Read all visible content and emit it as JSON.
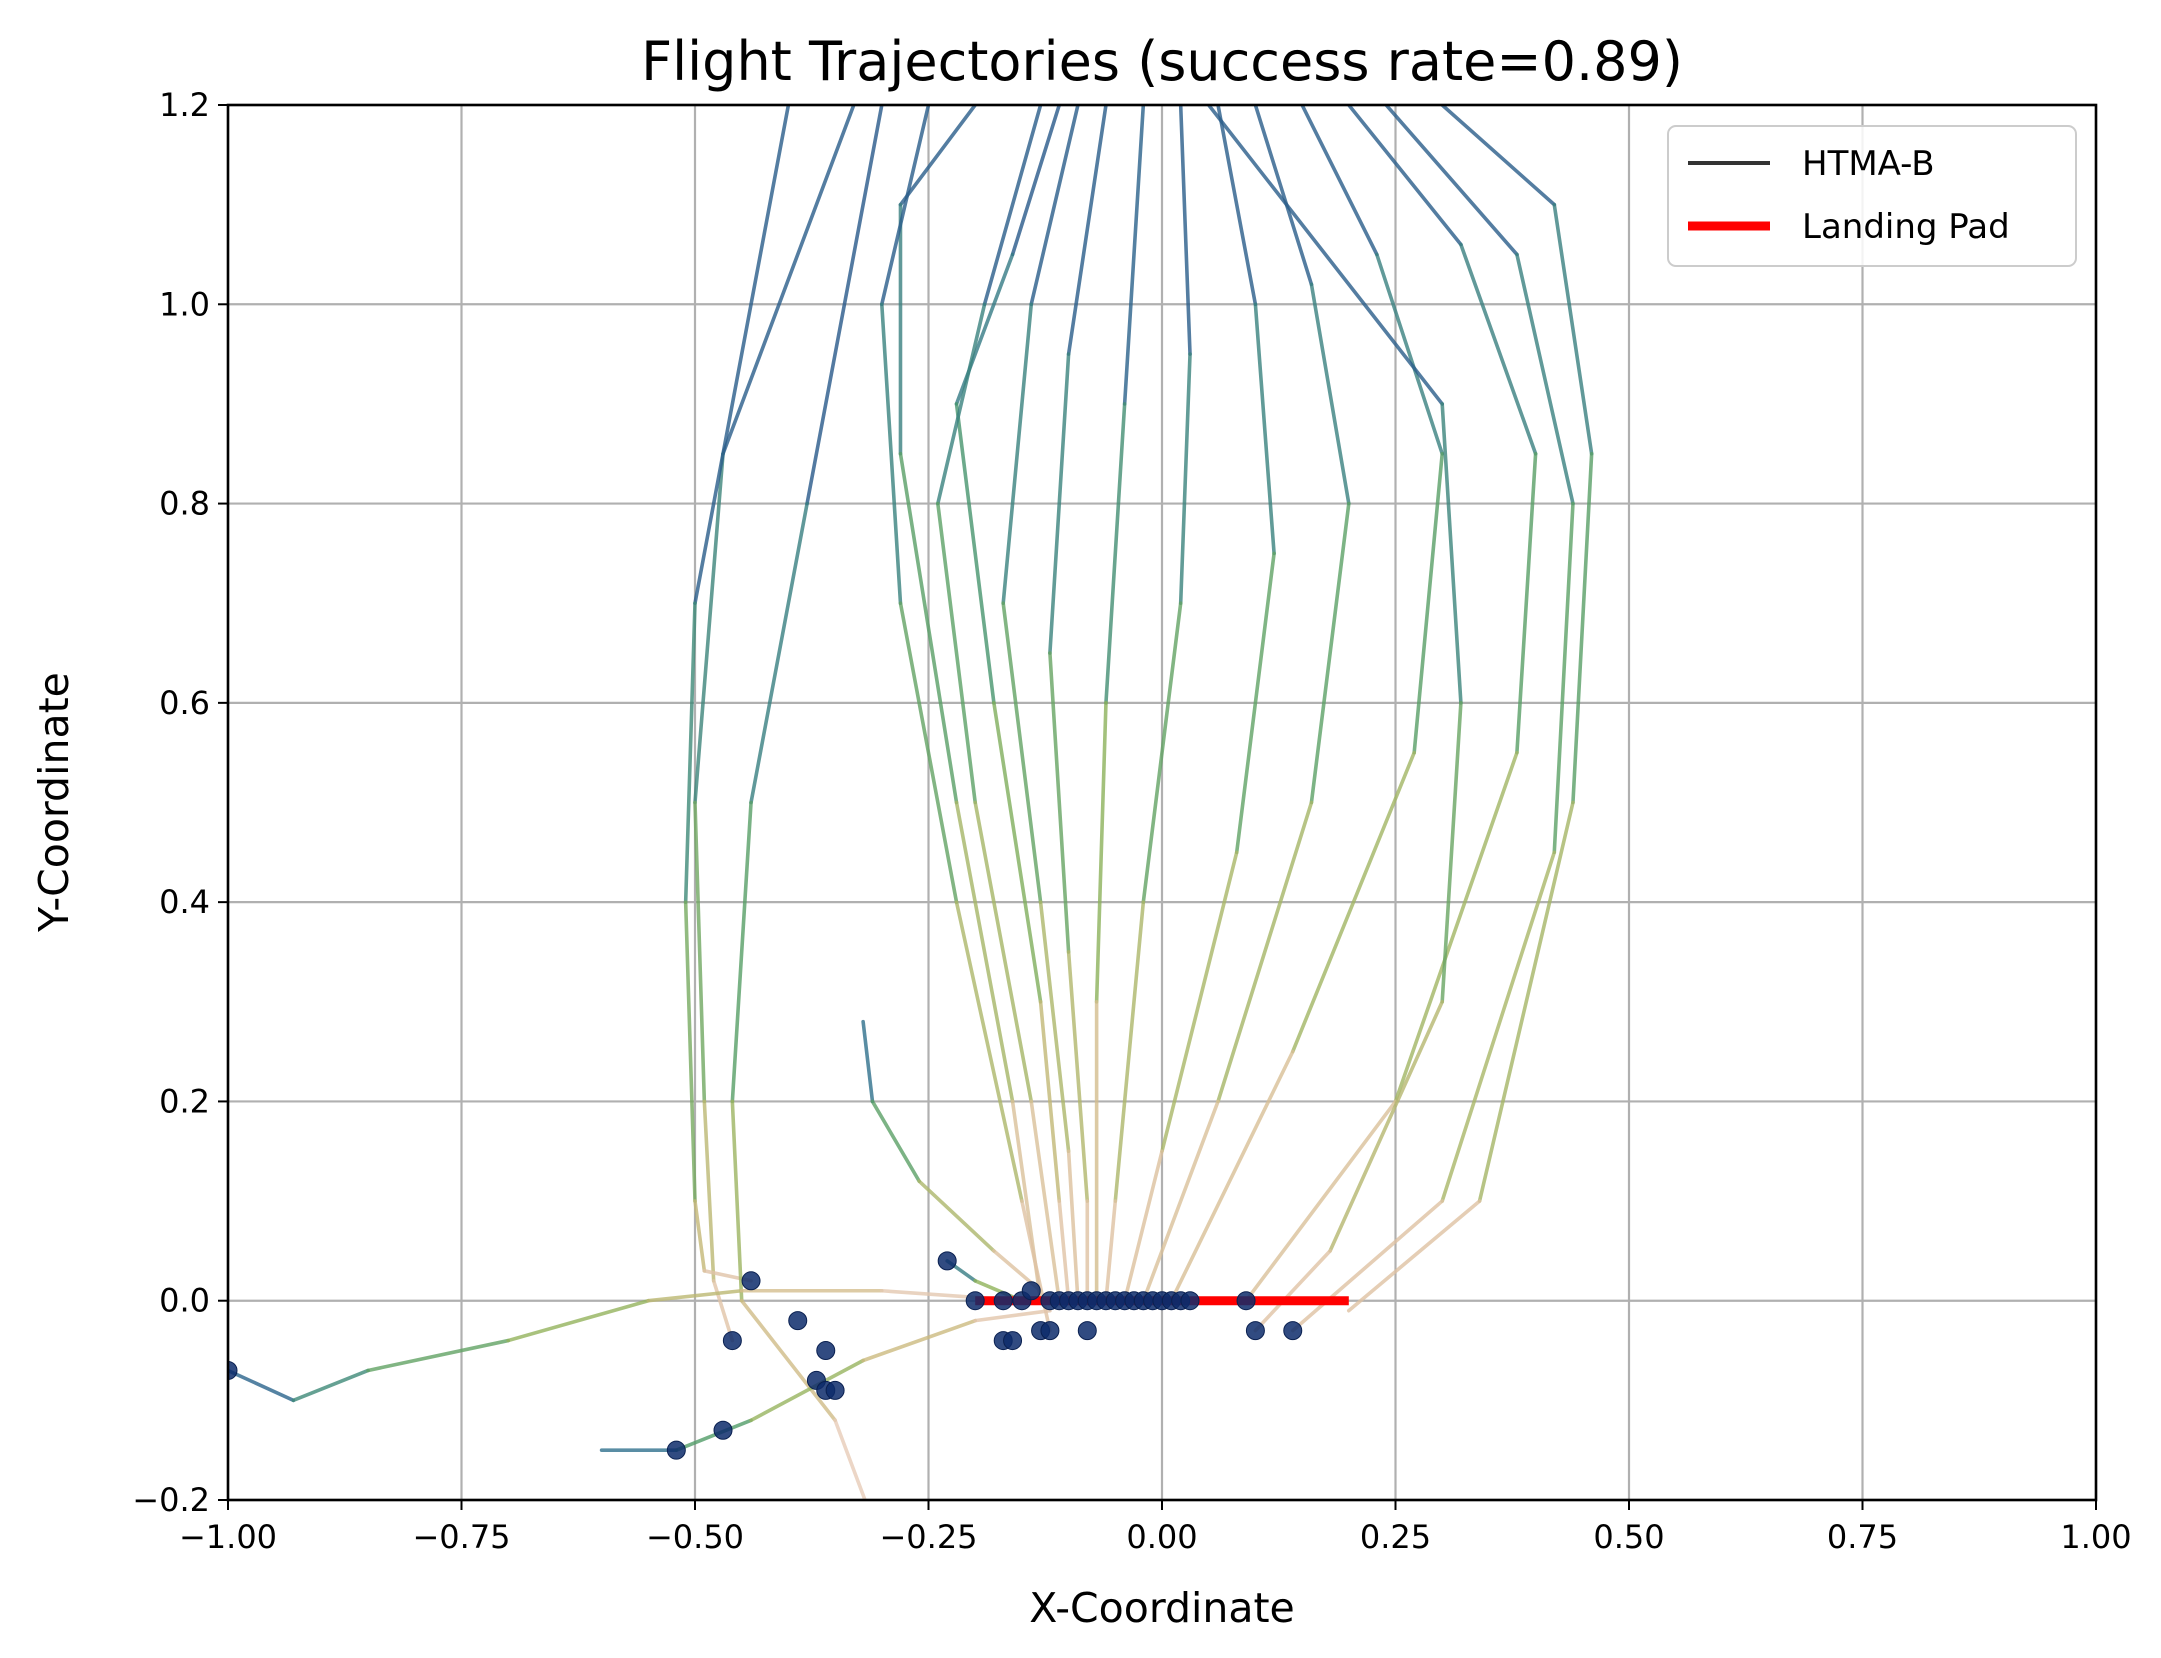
{
  "chart_data": {
    "type": "line",
    "title": "Flight Trajectories (success rate=0.89)",
    "xlabel": "X-Coordinate",
    "ylabel": "Y-Coordinate",
    "xlim": [
      -1.0,
      1.0
    ],
    "ylim": [
      -0.2,
      1.2
    ],
    "xticks": [
      -1.0,
      -0.75,
      -0.5,
      -0.25,
      0.0,
      0.25,
      0.5,
      0.75,
      1.0
    ],
    "xtick_labels": [
      "−1.00",
      "−0.75",
      "−0.50",
      "−0.25",
      "0.00",
      "0.25",
      "0.50",
      "0.75",
      "1.00"
    ],
    "yticks": [
      -0.2,
      0.0,
      0.2,
      0.4,
      0.6,
      0.8,
      1.0,
      1.2
    ],
    "ytick_labels": [
      "−0.2",
      "0.0",
      "0.2",
      "0.4",
      "0.6",
      "0.8",
      "1.0",
      "1.2"
    ],
    "grid": true,
    "legend": {
      "placement": "top-right",
      "entries": [
        {
          "label": "HTMA-B",
          "color": "#333333"
        },
        {
          "label": "Landing Pad",
          "color": "#ff0000"
        }
      ]
    },
    "landing_pad": {
      "x": [
        -0.2,
        0.2
      ],
      "y": 0.0,
      "color": "#ff0000"
    },
    "trajectory_colormap": [
      "#1a237e",
      "#2e6f8e",
      "#4a9a6a",
      "#8fb35a",
      "#c9b97a",
      "#e0c3a6",
      "#f3ddd6"
    ],
    "trajectories": [
      [
        [
          -0.11,
          1.2
        ],
        [
          -0.16,
          1.05
        ],
        [
          -0.22,
          0.9
        ],
        [
          -0.18,
          0.6
        ],
        [
          -0.13,
          0.3
        ],
        [
          -0.11,
          0.1
        ],
        [
          -0.1,
          0.0
        ]
      ],
      [
        [
          -0.13,
          1.2
        ],
        [
          -0.19,
          1.0
        ],
        [
          -0.24,
          0.8
        ],
        [
          -0.2,
          0.5
        ],
        [
          -0.14,
          0.2
        ],
        [
          -0.11,
          0.0
        ]
      ],
      [
        [
          -0.09,
          1.2
        ],
        [
          -0.14,
          1.0
        ],
        [
          -0.17,
          0.7
        ],
        [
          -0.13,
          0.4
        ],
        [
          -0.1,
          0.15
        ],
        [
          -0.09,
          0.0
        ]
      ],
      [
        [
          -0.06,
          1.2
        ],
        [
          -0.1,
          0.95
        ],
        [
          -0.12,
          0.65
        ],
        [
          -0.1,
          0.35
        ],
        [
          -0.08,
          0.1
        ],
        [
          -0.08,
          0.0
        ]
      ],
      [
        [
          -0.02,
          1.2
        ],
        [
          -0.04,
          0.9
        ],
        [
          -0.06,
          0.6
        ],
        [
          -0.07,
          0.3
        ],
        [
          -0.07,
          0.0
        ]
      ],
      [
        [
          0.02,
          1.2
        ],
        [
          0.03,
          0.95
        ],
        [
          0.02,
          0.7
        ],
        [
          -0.02,
          0.4
        ],
        [
          -0.05,
          0.1
        ],
        [
          -0.06,
          0.0
        ]
      ],
      [
        [
          0.06,
          1.2
        ],
        [
          0.1,
          1.0
        ],
        [
          0.12,
          0.75
        ],
        [
          0.08,
          0.45
        ],
        [
          0.0,
          0.15
        ],
        [
          -0.04,
          0.0
        ]
      ],
      [
        [
          0.1,
          1.2
        ],
        [
          0.16,
          1.02
        ],
        [
          0.2,
          0.8
        ],
        [
          0.16,
          0.5
        ],
        [
          0.06,
          0.2
        ],
        [
          -0.02,
          0.0
        ]
      ],
      [
        [
          0.15,
          1.2
        ],
        [
          0.23,
          1.05
        ],
        [
          0.3,
          0.85
        ],
        [
          0.27,
          0.55
        ],
        [
          0.14,
          0.25
        ],
        [
          0.01,
          0.0
        ]
      ],
      [
        [
          0.2,
          1.2
        ],
        [
          0.32,
          1.06
        ],
        [
          0.4,
          0.85
        ],
        [
          0.38,
          0.55
        ],
        [
          0.25,
          0.2
        ],
        [
          0.09,
          0.0
        ]
      ],
      [
        [
          0.24,
          1.2
        ],
        [
          0.38,
          1.05
        ],
        [
          0.44,
          0.8
        ],
        [
          0.42,
          0.45
        ],
        [
          0.3,
          0.1
        ],
        [
          0.14,
          -0.03
        ]
      ],
      [
        [
          0.3,
          1.2
        ],
        [
          0.42,
          1.1
        ],
        [
          0.46,
          0.85
        ],
        [
          0.44,
          0.5
        ],
        [
          0.34,
          0.1
        ],
        [
          0.2,
          -0.01
        ]
      ],
      [
        [
          -0.2,
          1.2
        ],
        [
          -0.28,
          1.1
        ],
        [
          -0.28,
          0.85
        ],
        [
          -0.22,
          0.5
        ],
        [
          -0.16,
          0.2
        ],
        [
          -0.13,
          0.0
        ]
      ],
      [
        [
          -0.25,
          1.2
        ],
        [
          -0.3,
          1.0
        ],
        [
          -0.28,
          0.7
        ],
        [
          -0.22,
          0.4
        ],
        [
          -0.15,
          0.1
        ],
        [
          -0.12,
          -0.03
        ]
      ],
      [
        [
          -0.33,
          1.2
        ],
        [
          -0.47,
          0.85
        ],
        [
          -0.5,
          0.5
        ],
        [
          -0.49,
          0.2
        ],
        [
          -0.48,
          0.02
        ],
        [
          -0.46,
          -0.04
        ]
      ],
      [
        [
          -0.4,
          1.2
        ],
        [
          -0.5,
          0.7
        ],
        [
          -0.51,
          0.4
        ],
        [
          -0.5,
          0.1
        ],
        [
          -0.49,
          0.03
        ],
        [
          -0.44,
          0.02
        ]
      ],
      [
        [
          -0.3,
          1.2
        ],
        [
          -0.38,
          0.8
        ],
        [
          -0.44,
          0.5
        ],
        [
          -0.46,
          0.2
        ],
        [
          -0.45,
          0.0
        ],
        [
          -0.35,
          -0.12
        ],
        [
          -0.31,
          -0.22
        ]
      ],
      [
        [
          -0.32,
          0.28
        ],
        [
          -0.31,
          0.2
        ],
        [
          -0.26,
          0.12
        ],
        [
          -0.18,
          0.05
        ],
        [
          -0.13,
          0.01
        ]
      ],
      [
        [
          -1.0,
          -0.07
        ],
        [
          -0.93,
          -0.1
        ],
        [
          -0.85,
          -0.07
        ],
        [
          -0.7,
          -0.04
        ],
        [
          -0.55,
          0.0
        ],
        [
          -0.45,
          0.01
        ],
        [
          -0.3,
          0.01
        ],
        [
          -0.15,
          0.0
        ]
      ],
      [
        [
          -0.6,
          -0.15
        ],
        [
          -0.52,
          -0.15
        ],
        [
          -0.44,
          -0.12
        ],
        [
          -0.32,
          -0.06
        ],
        [
          -0.2,
          -0.02
        ],
        [
          -0.12,
          -0.01
        ]
      ],
      [
        [
          0.05,
          1.2
        ],
        [
          0.3,
          0.9
        ],
        [
          0.32,
          0.6
        ],
        [
          0.3,
          0.3
        ],
        [
          0.18,
          0.05
        ],
        [
          0.1,
          -0.03
        ]
      ],
      [
        [
          -0.23,
          0.04
        ],
        [
          -0.2,
          0.02
        ],
        [
          -0.15,
          0.0
        ],
        [
          -0.08,
          0.0
        ]
      ]
    ],
    "endpoints": [
      [
        -1.0,
        -0.07
      ],
      [
        -0.52,
        -0.15
      ],
      [
        -0.47,
        -0.13
      ],
      [
        -0.46,
        -0.04
      ],
      [
        -0.44,
        0.02
      ],
      [
        -0.39,
        -0.02
      ],
      [
        -0.37,
        -0.08
      ],
      [
        -0.36,
        -0.09
      ],
      [
        -0.36,
        -0.05
      ],
      [
        -0.35,
        -0.09
      ],
      [
        -0.23,
        0.04
      ],
      [
        -0.2,
        0.0
      ],
      [
        -0.17,
        0.0
      ],
      [
        -0.17,
        -0.04
      ],
      [
        -0.16,
        -0.04
      ],
      [
        -0.15,
        0.0
      ],
      [
        -0.14,
        0.01
      ],
      [
        -0.13,
        -0.03
      ],
      [
        -0.12,
        -0.03
      ],
      [
        -0.12,
        0.0
      ],
      [
        -0.11,
        0.0
      ],
      [
        -0.1,
        0.0
      ],
      [
        -0.09,
        0.0
      ],
      [
        -0.08,
        0.0
      ],
      [
        -0.08,
        -0.03
      ],
      [
        -0.07,
        0.0
      ],
      [
        -0.06,
        0.0
      ],
      [
        -0.05,
        0.0
      ],
      [
        -0.04,
        0.0
      ],
      [
        -0.03,
        0.0
      ],
      [
        -0.02,
        0.0
      ],
      [
        -0.01,
        0.0
      ],
      [
        0.0,
        0.0
      ],
      [
        0.01,
        0.0
      ],
      [
        0.02,
        0.0
      ],
      [
        0.03,
        0.0
      ],
      [
        0.09,
        0.0
      ],
      [
        0.1,
        -0.03
      ],
      [
        0.14,
        -0.03
      ]
    ],
    "endpoint_color": "#0d2c6b"
  }
}
